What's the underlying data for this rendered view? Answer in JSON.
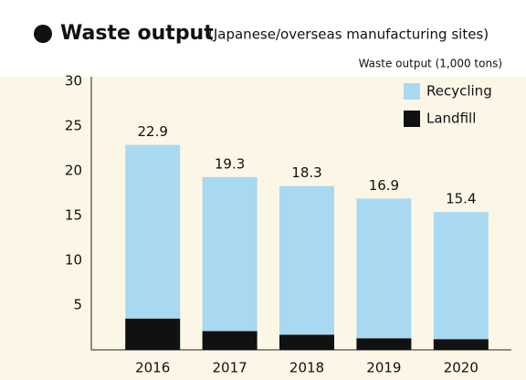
{
  "chart_data": {
    "type": "stacked_bar",
    "title": "Waste output",
    "subtitle": "(Japanese/overseas manufacturing sites)",
    "y_axis_label": "Waste output (1,000 tons)",
    "categories": [
      "2016",
      "2017",
      "2018",
      "2019",
      "2020"
    ],
    "series": [
      {
        "name": "Landfill",
        "color": "#111111",
        "values": [
          3.5,
          2.1,
          1.7,
          1.3,
          1.2
        ]
      },
      {
        "name": "Recycling",
        "color": "#a9d9f1",
        "values": [
          19.4,
          17.2,
          16.6,
          15.6,
          14.2
        ]
      }
    ],
    "totals": [
      22.9,
      19.3,
      18.3,
      16.9,
      15.4
    ],
    "ylim": [
      0,
      30
    ],
    "yticks": [
      5,
      10,
      15,
      20,
      25,
      30
    ],
    "legend": "top-right"
  }
}
